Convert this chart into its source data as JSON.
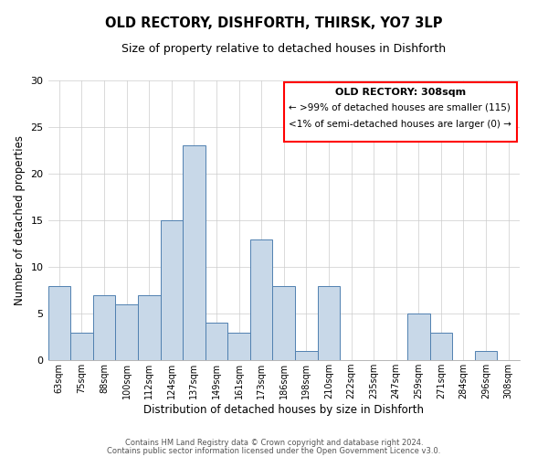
{
  "title": "OLD RECTORY, DISHFORTH, THIRSK, YO7 3LP",
  "subtitle": "Size of property relative to detached houses in Dishforth",
  "xlabel": "Distribution of detached houses by size in Dishforth",
  "ylabel": "Number of detached properties",
  "bar_color": "#c8d8e8",
  "bar_edge_color": "#5080b0",
  "bin_labels": [
    "63sqm",
    "75sqm",
    "88sqm",
    "100sqm",
    "112sqm",
    "124sqm",
    "137sqm",
    "149sqm",
    "161sqm",
    "173sqm",
    "186sqm",
    "198sqm",
    "210sqm",
    "222sqm",
    "235sqm",
    "247sqm",
    "259sqm",
    "271sqm",
    "284sqm",
    "296sqm",
    "308sqm"
  ],
  "counts": [
    8,
    3,
    7,
    6,
    7,
    15,
    23,
    4,
    3,
    13,
    8,
    1,
    8,
    0,
    0,
    0,
    5,
    3,
    0,
    1,
    0
  ],
  "ylim": [
    0,
    30
  ],
  "yticks": [
    0,
    5,
    10,
    15,
    20,
    25,
    30
  ],
  "annotation_title": "OLD RECTORY: 308sqm",
  "annotation_line1": "← >99% of detached houses are smaller (115)",
  "annotation_line2": "<1% of semi-detached houses are larger (0) →",
  "footer1": "Contains HM Land Registry data © Crown copyright and database right 2024.",
  "footer2": "Contains public sector information licensed under the Open Government Licence v3.0."
}
